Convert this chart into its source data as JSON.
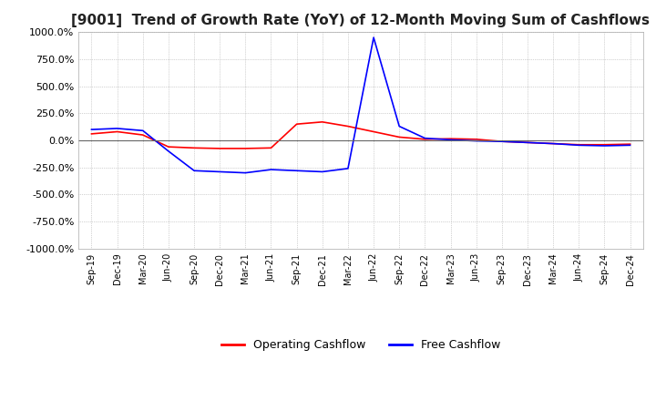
{
  "title": "[9001]  Trend of Growth Rate (YoY) of 12-Month Moving Sum of Cashflows",
  "title_fontsize": 11,
  "ylim": [
    -1000,
    1000
  ],
  "yticks": [
    -1000,
    -750,
    -500,
    -250,
    0,
    250,
    500,
    750,
    1000
  ],
  "ytick_labels": [
    "-1000.0%",
    "-750.0%",
    "-500.0%",
    "-250.0%",
    "0.0%",
    "250.0%",
    "500.0%",
    "750.0%",
    "1000.0%"
  ],
  "xtick_labels": [
    "Sep-19",
    "Dec-19",
    "Mar-20",
    "Jun-20",
    "Sep-20",
    "Dec-20",
    "Mar-21",
    "Jun-21",
    "Sep-21",
    "Dec-21",
    "Mar-22",
    "Jun-22",
    "Sep-22",
    "Dec-22",
    "Mar-23",
    "Jun-23",
    "Sep-23",
    "Dec-23",
    "Mar-24",
    "Jun-24",
    "Sep-24",
    "Dec-24"
  ],
  "operating_color": "#FF0000",
  "free_color": "#0000FF",
  "background_color": "#FFFFFF",
  "grid_color": "#AAAAAA",
  "legend_labels": [
    "Operating Cashflow",
    "Free Cashflow"
  ],
  "operating_cashflow": [
    60,
    80,
    50,
    -60,
    -70,
    -75,
    -75,
    -70,
    150,
    170,
    130,
    80,
    30,
    10,
    15,
    10,
    -10,
    -20,
    -30,
    -40,
    -40,
    -35
  ],
  "free_cashflow": [
    100,
    110,
    90,
    -100,
    -280,
    -290,
    -300,
    -270,
    -280,
    -290,
    -260,
    950,
    130,
    20,
    5,
    -5,
    -10,
    -20,
    -30,
    -45,
    -50,
    -45
  ]
}
